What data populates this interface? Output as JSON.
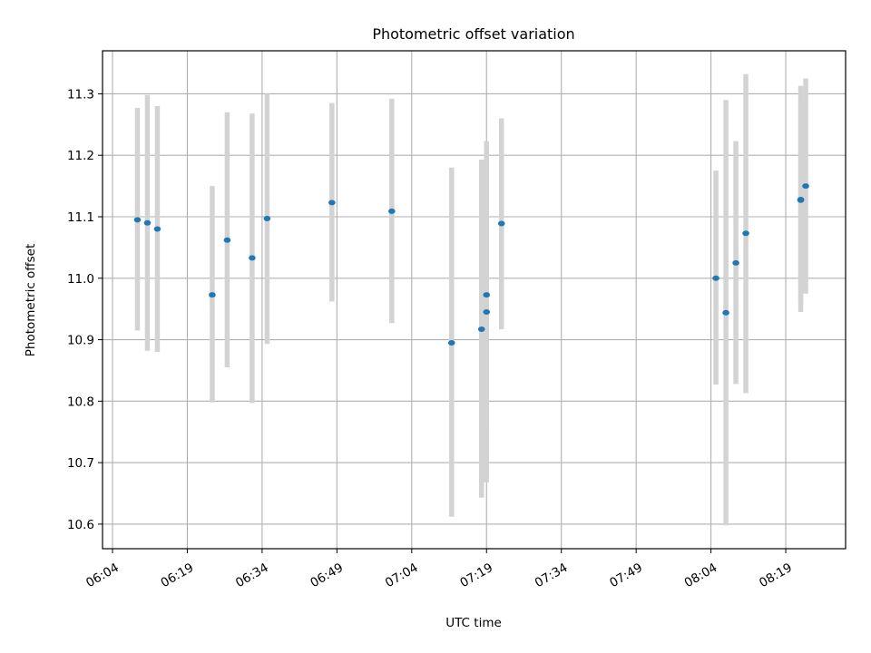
{
  "chart_data": {
    "type": "scatter",
    "title": "Photometric offset variation",
    "xlabel": "UTC time",
    "ylabel": "Photometric offset",
    "grid": true,
    "x_tick_labels": [
      "06:04",
      "06:19",
      "06:34",
      "06:49",
      "07:04",
      "07:19",
      "07:34",
      "07:49",
      "08:04",
      "08:19"
    ],
    "y_tick_labels": [
      "10.6",
      "10.7",
      "10.8",
      "10.9",
      "11.0",
      "11.1",
      "11.2",
      "11.3"
    ],
    "x_start": "06:04",
    "xlim": [
      "06:02",
      "08:31"
    ],
    "ylim": [
      10.56,
      11.37
    ],
    "colors": {
      "marker": "#1f77b4",
      "errorbar": "#d3d3d3",
      "grid": "#b0b0b0"
    },
    "points": [
      {
        "time": "06:09",
        "y": 11.095,
        "low": 10.915,
        "high": 11.277
      },
      {
        "time": "06:11",
        "y": 11.09,
        "low": 10.882,
        "high": 11.298
      },
      {
        "time": "06:13",
        "y": 11.08,
        "low": 10.88,
        "high": 11.28
      },
      {
        "time": "06:24",
        "y": 10.973,
        "low": 10.798,
        "high": 11.15
      },
      {
        "time": "06:27",
        "y": 11.062,
        "low": 10.855,
        "high": 11.27
      },
      {
        "time": "06:32",
        "y": 11.033,
        "low": 10.797,
        "high": 11.268
      },
      {
        "time": "06:35",
        "y": 11.097,
        "low": 10.893,
        "high": 11.3
      },
      {
        "time": "06:48",
        "y": 11.123,
        "low": 10.962,
        "high": 11.285
      },
      {
        "time": "07:00",
        "y": 11.109,
        "low": 10.927,
        "high": 11.292
      },
      {
        "time": "07:12",
        "y": 10.895,
        "low": 10.612,
        "high": 11.18
      },
      {
        "time": "07:18",
        "y": 10.917,
        "low": 10.643,
        "high": 11.193
      },
      {
        "time": "07:19",
        "y": 10.945,
        "low": 10.668,
        "high": 11.223
      },
      {
        "time": "07:19",
        "y": 10.973,
        "low": 10.748,
        "high": 11.198
      },
      {
        "time": "07:22",
        "y": 11.089,
        "low": 10.917,
        "high": 11.26
      },
      {
        "time": "08:05",
        "y": 11.0,
        "low": 10.827,
        "high": 11.175
      },
      {
        "time": "08:07",
        "y": 10.944,
        "low": 10.598,
        "high": 11.29
      },
      {
        "time": "08:09",
        "y": 11.025,
        "low": 10.828,
        "high": 11.223
      },
      {
        "time": "08:11",
        "y": 11.073,
        "low": 10.813,
        "high": 11.332
      },
      {
        "time": "08:22",
        "y": 11.128,
        "low": 10.945,
        "high": 11.313
      },
      {
        "time": "08:22",
        "y": 11.127,
        "low": 10.962,
        "high": 11.293
      },
      {
        "time": "08:23",
        "y": 11.15,
        "low": 10.975,
        "high": 11.325
      }
    ]
  }
}
